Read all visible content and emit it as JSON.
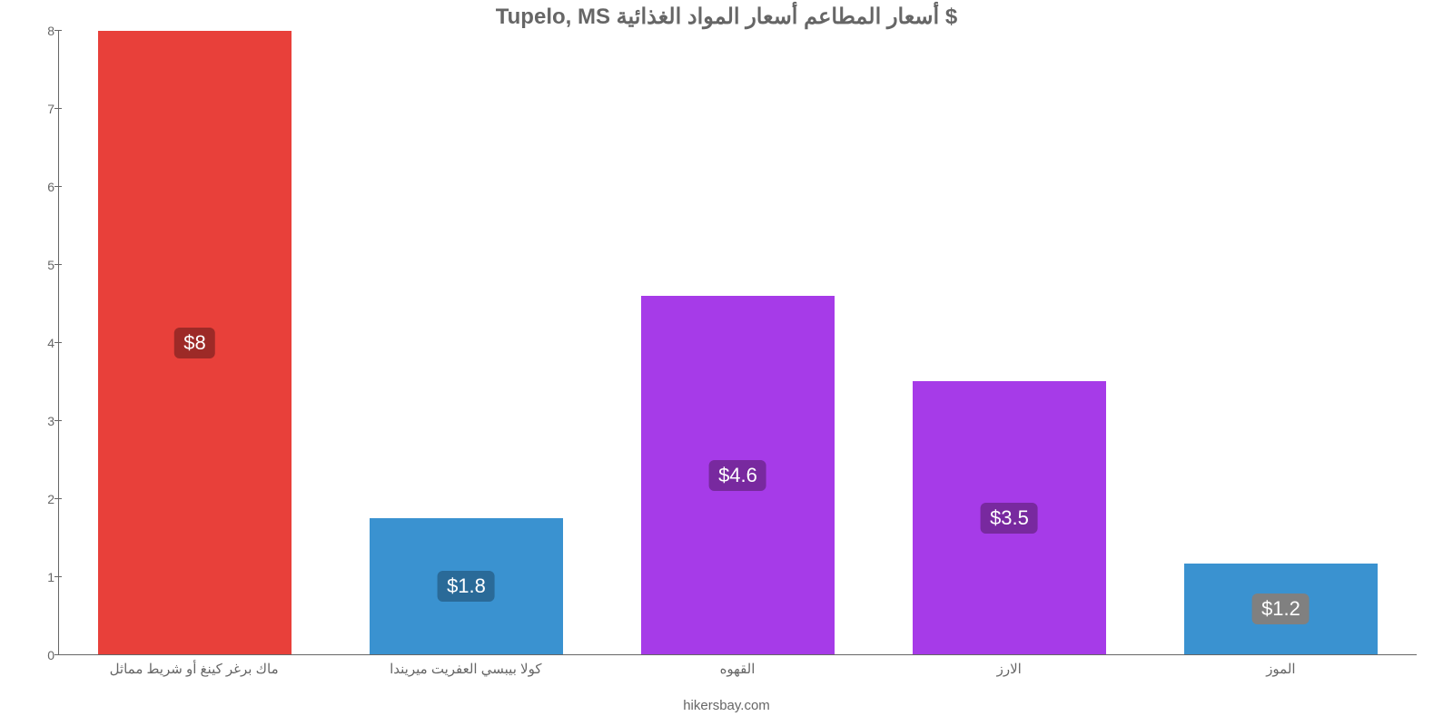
{
  "title": "$ أسعار المطاعم أسعار المواد الغذائية Tupelo, MS",
  "credit": "hikersbay.com",
  "chart": {
    "type": "bar",
    "background_color": "#ffffff",
    "axis_color": "#666666",
    "tick_font_size": 14,
    "title_font_size": 24,
    "title_color": "#666666",
    "credit_color": "#666666",
    "ylim": [
      0,
      8
    ],
    "yticks": [
      0,
      1,
      2,
      3,
      4,
      5,
      6,
      7,
      8
    ],
    "bar_width_pct": 14.2,
    "categories": [
      "ماك برغر كينغ أو شريط مماثل",
      "كولا بيبسي العفريت ميريندا",
      "القهوه",
      "الارز",
      "الموز"
    ],
    "values": [
      8,
      1.75,
      4.6,
      3.5,
      1.17
    ],
    "value_labels": [
      "$8",
      "$1.8",
      "$4.6",
      "$3.5",
      "$1.2"
    ],
    "bar_colors": [
      "#e8403a",
      "#3a92d0",
      "#a63be8",
      "#a63be8",
      "#3a92d0"
    ],
    "badge_colors": [
      "#9d2a27",
      "#2a6a98",
      "#78299f",
      "#78299f",
      "#808080"
    ],
    "font_family": "sans-serif"
  }
}
